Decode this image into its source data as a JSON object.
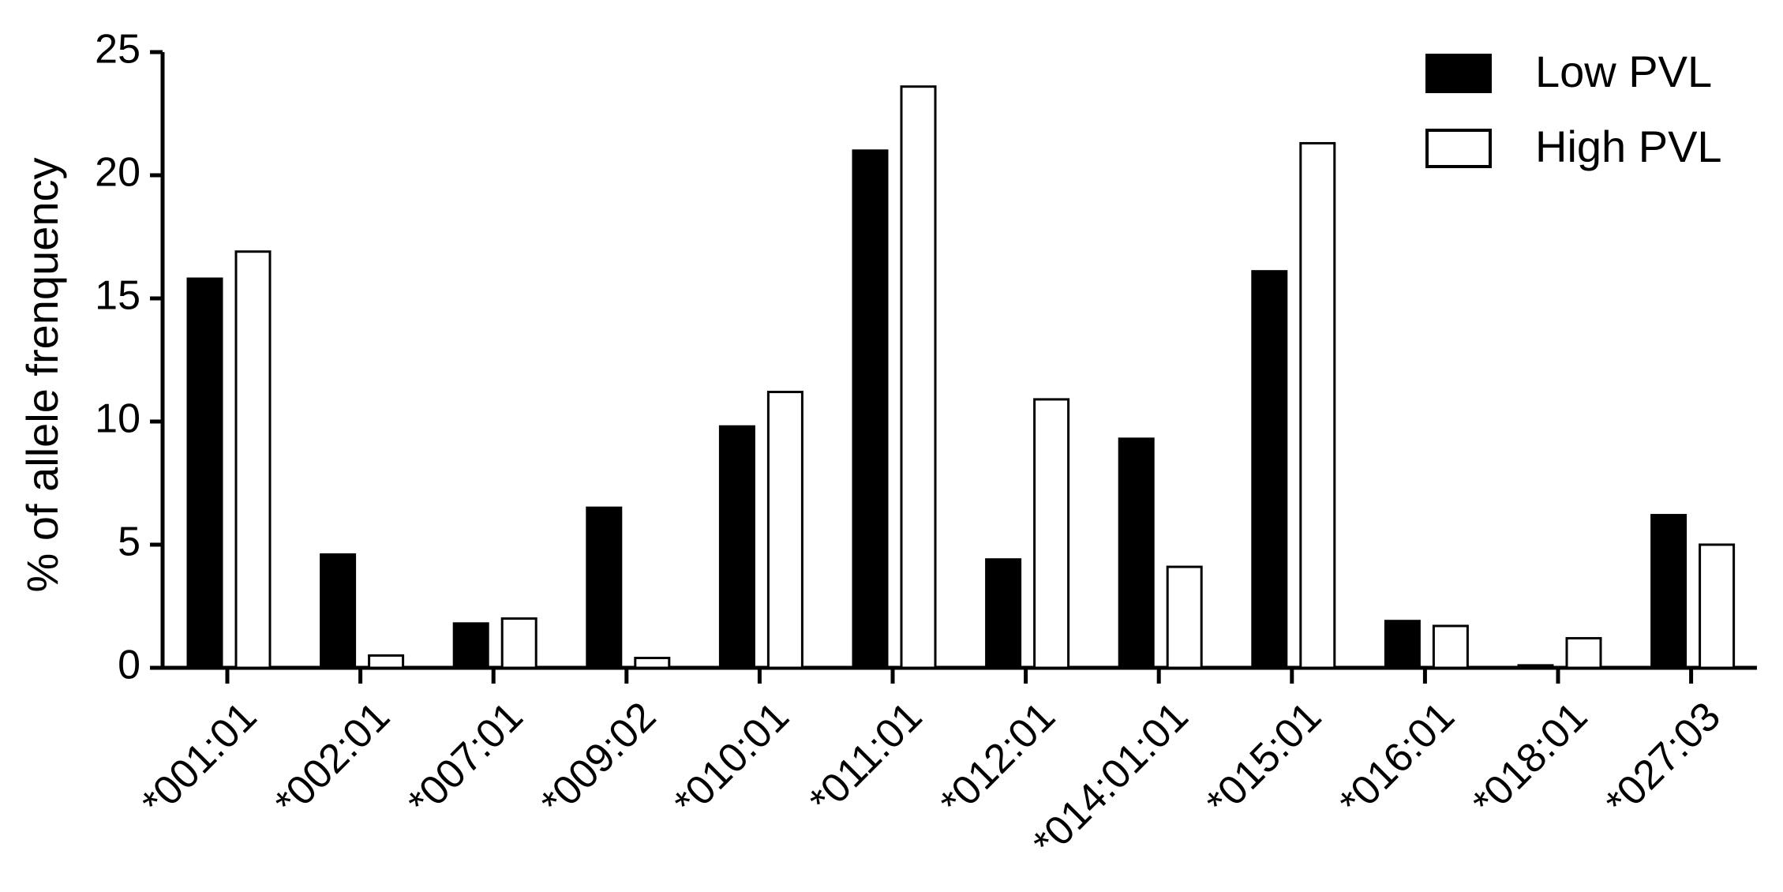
{
  "chart_data": {
    "type": "bar",
    "y_label": "% of allele frenquency",
    "categories": [
      "*001:01",
      "*002:01",
      "*007:01",
      "*009:02",
      "*010:01",
      "*011:01",
      "*012:01",
      "*014:01:01",
      "*015:01",
      "*016:01",
      "*018:01",
      "*027:03"
    ],
    "series": [
      {
        "name": "Low PVL",
        "color": "#000000",
        "values": [
          15.8,
          4.6,
          1.8,
          6.5,
          9.8,
          21.0,
          4.4,
          9.3,
          16.1,
          1.9,
          0.1,
          6.2
        ]
      },
      {
        "name": "High PVL",
        "color": "#ffffff",
        "values": [
          16.9,
          0.5,
          2.0,
          0.4,
          11.2,
          23.6,
          10.9,
          4.1,
          21.3,
          1.7,
          1.2,
          5.0
        ]
      }
    ],
    "ylim": [
      0,
      25
    ],
    "yticks": [
      0,
      5,
      10,
      15,
      20,
      25
    ],
    "grid": false,
    "legend": "top-right"
  }
}
